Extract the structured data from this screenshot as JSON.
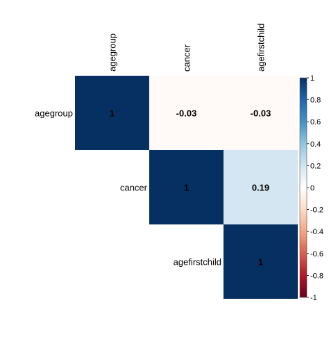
{
  "chart_data": {
    "type": "heatmap",
    "title": "",
    "variables": [
      "agegroup",
      "cancer",
      "agefirstchild"
    ],
    "matrix": [
      [
        1,
        -0.03,
        -0.03
      ],
      [
        null,
        1,
        0.19
      ],
      [
        null,
        null,
        1
      ]
    ],
    "cells": [
      {
        "row": 0,
        "col": 0,
        "value": 1,
        "label": "1"
      },
      {
        "row": 0,
        "col": 1,
        "value": -0.03,
        "label": "-0.03"
      },
      {
        "row": 0,
        "col": 2,
        "value": -0.03,
        "label": "-0.03"
      },
      {
        "row": 1,
        "col": 1,
        "value": 1,
        "label": "1"
      },
      {
        "row": 1,
        "col": 2,
        "value": 0.19,
        "label": "0.19"
      },
      {
        "row": 2,
        "col": 2,
        "value": 1,
        "label": "1"
      }
    ],
    "triangle": "upper",
    "color_scale": {
      "range": [
        -1,
        1
      ],
      "low_color": "#67001F",
      "mid_color": "#FFFFFF",
      "high_color": "#053061"
    },
    "legend": {
      "placement": "right",
      "ticks": [
        "1",
        "0.8",
        "0.6",
        "0.4",
        "0.2",
        "0",
        "-0.2",
        "-0.4",
        "-0.6",
        "-0.8",
        "-1"
      ],
      "tick_values": [
        1,
        0.8,
        0.6,
        0.4,
        0.2,
        0,
        -0.2,
        -0.4,
        -0.6,
        -0.8,
        -1
      ]
    },
    "grid": false
  }
}
